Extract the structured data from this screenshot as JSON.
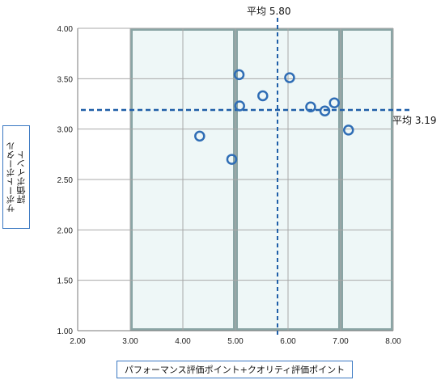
{
  "chart_data": {
    "type": "scatter",
    "xlabel": "パフォーマンス評価ポイント+クオリティ評価ポイント",
    "ylabel": "サポートポータル\n評価ポイント",
    "xlim": [
      2.0,
      8.0
    ],
    "ylim": [
      1.0,
      4.0
    ],
    "x_ticks": [
      "2.00",
      "3.00",
      "4.00",
      "5.00",
      "6.00",
      "7.00",
      "8.00"
    ],
    "y_ticks": [
      "1.00",
      "1.50",
      "2.00",
      "2.50",
      "3.00",
      "3.50",
      "4.00"
    ],
    "grid": true,
    "points": [
      {
        "x": 4.32,
        "y": 2.93
      },
      {
        "x": 4.93,
        "y": 2.7
      },
      {
        "x": 5.07,
        "y": 3.54
      },
      {
        "x": 5.08,
        "y": 3.23
      },
      {
        "x": 5.52,
        "y": 3.33
      },
      {
        "x": 6.03,
        "y": 3.51
      },
      {
        "x": 6.43,
        "y": 3.22
      },
      {
        "x": 6.7,
        "y": 3.18
      },
      {
        "x": 6.88,
        "y": 3.26
      },
      {
        "x": 7.15,
        "y": 2.99
      }
    ],
    "avg_x": 5.8,
    "avg_y": 3.19,
    "avg_x_label": "平均 5.80",
    "avg_y_label": "平均 3.19",
    "bands": [
      {
        "from": 3.0,
        "to": 5.0
      },
      {
        "from": 5.0,
        "to": 7.0
      },
      {
        "from": 7.0,
        "to": 8.0
      }
    ],
    "colors": {
      "band_fill": "#eef7f7",
      "band_border": "#8aa5a5",
      "avg_line": "#1f5fa8",
      "marker": "#2f6db5",
      "grid": "#a8a8a8"
    }
  }
}
